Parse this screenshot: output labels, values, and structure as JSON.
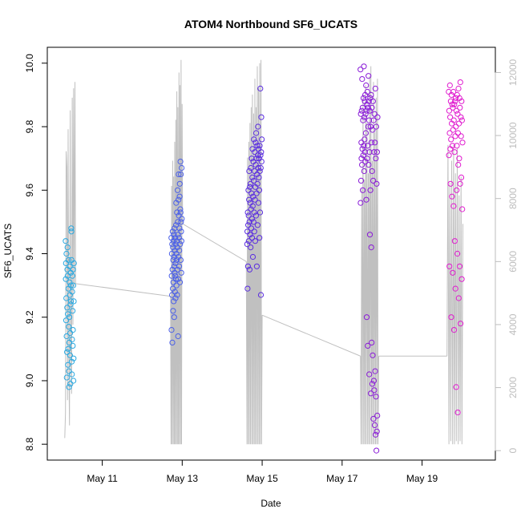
{
  "chart_data": {
    "type": "scatter",
    "title": "ATOM4 Northbound SF6_UCATS",
    "xlabel": "Date",
    "ylabel": "SF6_UCATS",
    "xlim": [
      "2016-05-09T15:00",
      "2016-05-20T20:00"
    ],
    "ylim": [
      8.75,
      10.05
    ],
    "y2lim": [
      -300,
      12800
    ],
    "xticks": [
      {
        "label": "May 11",
        "x": "2016-05-11"
      },
      {
        "label": "May 13",
        "x": "2016-05-13"
      },
      {
        "label": "May 15",
        "x": "2016-05-15"
      },
      {
        "label": "May 17",
        "x": "2016-05-17"
      },
      {
        "label": "May 19",
        "x": "2016-05-19"
      }
    ],
    "yticks": [
      8.8,
      9.0,
      9.2,
      9.4,
      9.6,
      9.8,
      10.0
    ],
    "y2ticks": [
      0,
      2000,
      4000,
      6000,
      8000,
      10000,
      12000
    ],
    "grid": false,
    "series": [
      {
        "color": "#29a8e0",
        "segments": [
          {
            "start": "2016-05-10T02:00",
            "end": "2016-05-10T07:00",
            "values": [
              9.44,
              9.32,
              9.37,
              9.19,
              9.26,
              9.4,
              9.14,
              9.01,
              9.09,
              9.23,
              9.35,
              9.42,
              9.33,
              9.21,
              9.05,
              9.1,
              9.29,
              9.38,
              9.17,
              9.03,
              8.98,
              9.12,
              9.2,
              9.31,
              9.36,
              9.27,
              9.08,
              9.15,
              8.99,
              9.24,
              9.34,
              9.3,
              9.25,
              9.48,
              9.47,
              9.38,
              9.06,
              9.02,
              9.13,
              9.28,
              9.33,
              9.22,
              9.11,
              9.16,
              9.35,
              9.3,
              9.0,
              9.07,
              9.25,
              9.37
            ]
          }
        ]
      },
      {
        "color": "#4a5fe8",
        "segments": [
          {
            "start": "2016-05-12T17:30",
            "end": "2016-05-12T23:45",
            "values": [
              9.45,
              9.16,
              9.33,
              9.4,
              9.27,
              9.43,
              9.12,
              9.35,
              9.47,
              9.29,
              9.42,
              9.22,
              9.38,
              9.31,
              9.44,
              9.25,
              9.46,
              9.39,
              9.2,
              9.36,
              9.48,
              9.34,
              9.41,
              9.28,
              9.45,
              9.33,
              9.37,
              9.26,
              9.43,
              9.32,
              9.49,
              9.56,
              9.4,
              9.3,
              9.38,
              9.44,
              9.53,
              9.27,
              9.42,
              9.35,
              9.6,
              9.5,
              9.46,
              9.14,
              9.32,
              9.39,
              9.57,
              9.65,
              9.52,
              9.45,
              9.36,
              9.41,
              9.48,
              9.58,
              9.62,
              9.31,
              9.43,
              9.54,
              9.69,
              9.53,
              9.38,
              9.65,
              9.5,
              9.47,
              9.34,
              9.44,
              9.67,
              9.51
            ]
          }
        ]
      },
      {
        "color": "#5a2ce0",
        "segments": [
          {
            "start": "2016-05-14T15:00",
            "end": "2016-05-14T23:45",
            "values": [
              9.43,
              9.47,
              9.29,
              9.53,
              9.36,
              9.49,
              9.6,
              9.52,
              9.44,
              9.57,
              9.66,
              9.5,
              9.35,
              9.61,
              9.46,
              9.56,
              9.62,
              9.42,
              9.67,
              9.54,
              9.48,
              9.59,
              9.7,
              9.51,
              9.45,
              9.64,
              9.73,
              9.55,
              9.39,
              9.58,
              9.69,
              9.5,
              9.63,
              9.76,
              9.53,
              9.47,
              9.66,
              9.72,
              9.57,
              9.44,
              9.61,
              9.75,
              9.68,
              9.52,
              9.78,
              9.7,
              9.59,
              9.36,
              9.65,
              9.74,
              9.62,
              9.49,
              9.71,
              9.8,
              9.67,
              9.56,
              9.73,
              9.64,
              9.7,
              9.6,
              9.45,
              9.74,
              9.66,
              9.53,
              9.92,
              9.71,
              9.67,
              9.27,
              9.72,
              9.83,
              9.69,
              9.76
            ]
          }
        ]
      },
      {
        "color": "#8a1bd8",
        "segments": [
          {
            "start": "2016-05-17T11:00",
            "end": "2016-05-17T21:15",
            "values": [
              9.98,
              9.56,
              9.84,
              9.63,
              9.75,
              9.7,
              9.85,
              9.68,
              9.95,
              9.73,
              9.86,
              9.6,
              9.82,
              9.71,
              9.89,
              9.74,
              9.99,
              9.66,
              9.83,
              9.76,
              9.88,
              9.72,
              9.9,
              9.69,
              9.84,
              9.78,
              9.93,
              9.57,
              9.85,
              9.2,
              9.87,
              9.7,
              9.91,
              9.74,
              9.11,
              9.86,
              9.8,
              9.96,
              9.68,
              9.88,
              9.82,
              9.02,
              9.72,
              9.85,
              9.46,
              9.89,
              9.6,
              9.8,
              8.96,
              9.9,
              9.42,
              9.75,
              9.12,
              9.86,
              9.66,
              8.99,
              9.79,
              9.08,
              9.88,
              9.63,
              8.88,
              9.82,
              9.0,
              9.72,
              8.97,
              9.84,
              8.86,
              9.75,
              9.03,
              9.92,
              8.83,
              9.7,
              8.95,
              9.8,
              8.78,
              9.62,
              8.84,
              9.72,
              8.89,
              9.83
            ]
          }
        ]
      },
      {
        "color": "#e01bcf",
        "segments": [
          {
            "start": "2016-05-19T16:00",
            "end": "2016-05-20T00:15",
            "values": [
              9.91,
              9.71,
              9.85,
              9.36,
              9.78,
              9.93,
              9.83,
              9.73,
              9.62,
              9.88,
              9.76,
              9.2,
              9.9,
              9.81,
              9.58,
              9.87,
              9.74,
              9.34,
              9.86,
              9.79,
              9.91,
              9.55,
              9.82,
              9.16,
              9.87,
              9.72,
              9.44,
              9.88,
              9.77,
              9.29,
              9.89,
              9.8,
              8.98,
              9.85,
              9.6,
              9.74,
              9.9,
              9.4,
              9.84,
              8.9,
              9.78,
              9.68,
              9.92,
              9.26,
              9.81,
              9.7,
              9.89,
              9.36,
              9.86,
              9.62,
              9.94,
              9.18,
              9.83,
              9.77,
              9.64,
              9.88,
              9.32,
              9.82,
              9.54,
              9.75
            ]
          }
        ]
      }
    ],
    "line_series": {
      "color": "#c0c0c0",
      "axis": "right",
      "segments": [
        {
          "start": "2016-05-10T01:30",
          "end": "2016-05-10T08:00",
          "values": [
            400,
            1200,
            9500,
            9000,
            1600,
            10200,
            2800,
            800,
            10800,
            3200,
            1800,
            11200,
            4000,
            11500,
            5200,
            11700,
            5300
          ]
        },
        {
          "start": "2016-05-12T17:00",
          "end": "2016-05-13T00:15",
          "values": [
            4900,
            200,
            8400,
            200,
            9200,
            200,
            8700,
            200,
            9800,
            200,
            10500,
            200,
            11400,
            200,
            10900,
            200,
            12000,
            200,
            11600,
            200,
            12400,
            200,
            11000,
            7200
          ]
        },
        {
          "start": "2016-05-14T14:30",
          "end": "2016-05-15T00:00",
          "values": [
            6000,
            200,
            9300,
            200,
            9800,
            200,
            10400,
            200,
            10900,
            200,
            11300,
            200,
            10700,
            200,
            11800,
            200,
            10900,
            200,
            12200,
            200,
            11500,
            200,
            12300,
            200,
            12400,
            200,
            4300
          ]
        },
        {
          "start": "2016-05-17T11:00",
          "end": "2016-05-17T22:00",
          "values": [
            3000,
            200,
            8300,
            200,
            11300,
            200,
            8600,
            200,
            11600,
            200,
            10400,
            200,
            8800,
            200,
            11900,
            200,
            12200,
            200,
            9200,
            200,
            11700,
            200,
            10100,
            200,
            11200,
            200,
            11800,
            200,
            3000
          ]
        },
        {
          "start": "2016-05-19T15:00",
          "end": "2016-05-20T00:30",
          "values": [
            3000,
            9700,
            200,
            8500,
            300,
            9200,
            200,
            9700,
            200,
            8800,
            300,
            9600,
            200,
            8100,
            300,
            8700,
            200,
            7200
          ]
        }
      ],
      "connectors": [
        {
          "from": [
            "2016-05-10T08:00",
            5300
          ],
          "to": [
            "2016-05-12T17:00",
            4900
          ]
        },
        {
          "from": [
            "2016-05-13T00:15",
            7200
          ],
          "to": [
            "2016-05-14T14:30",
            6000
          ]
        },
        {
          "from": [
            "2016-05-15T00:00",
            4300
          ],
          "to": [
            "2016-05-17T11:00",
            3000
          ]
        },
        {
          "from": [
            "2016-05-17T22:00",
            3000
          ],
          "to": [
            "2016-05-19T15:00",
            3000
          ]
        }
      ]
    }
  }
}
